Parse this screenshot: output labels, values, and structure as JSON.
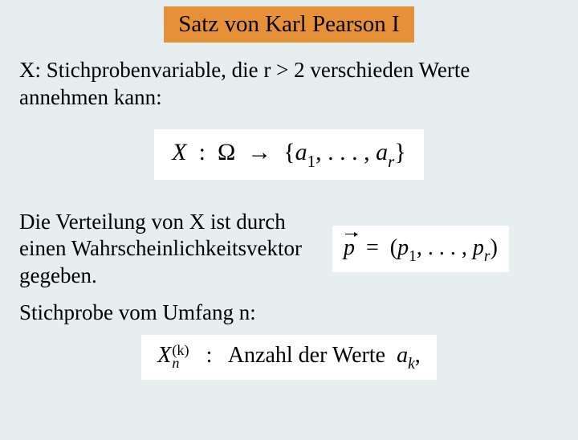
{
  "title": "Satz von Karl Pearson I",
  "text1": "X: Stichprobenvariable, die  r > 2 verschieden Werte annehmen kann:",
  "formula1": {
    "X": "X",
    "colon": ":",
    "Omega": "Ω",
    "arrow": "→",
    "lbrace": "{",
    "a": "a",
    "sub1": "1",
    "dots": ", . . . ,",
    "subr": "r",
    "rbrace": "}"
  },
  "text2": "Die Verteilung von X ist durch einen Wahrscheinlichkeitsvektor gegeben.",
  "formula2": {
    "p": "p",
    "eq": "=",
    "lp": "(",
    "psym": "p",
    "sub1": "1",
    "dots": ", . . . ,",
    "subr": "r",
    "rp": ")"
  },
  "text3": "Stichprobe vom Umfang n:",
  "formula3": {
    "X": "X",
    "supk": "(k)",
    "subn": "n",
    "colon": ":",
    "rest": "Anzahl der Werte",
    "a": "a",
    "subk": "k",
    "comma": ","
  },
  "colors": {
    "background": "#e6eef0",
    "title_bg": "#e69138",
    "formula_bg": "#ffffff",
    "text": "#000000"
  },
  "fontsize": {
    "title": 29,
    "body": 27,
    "formula": 30
  }
}
